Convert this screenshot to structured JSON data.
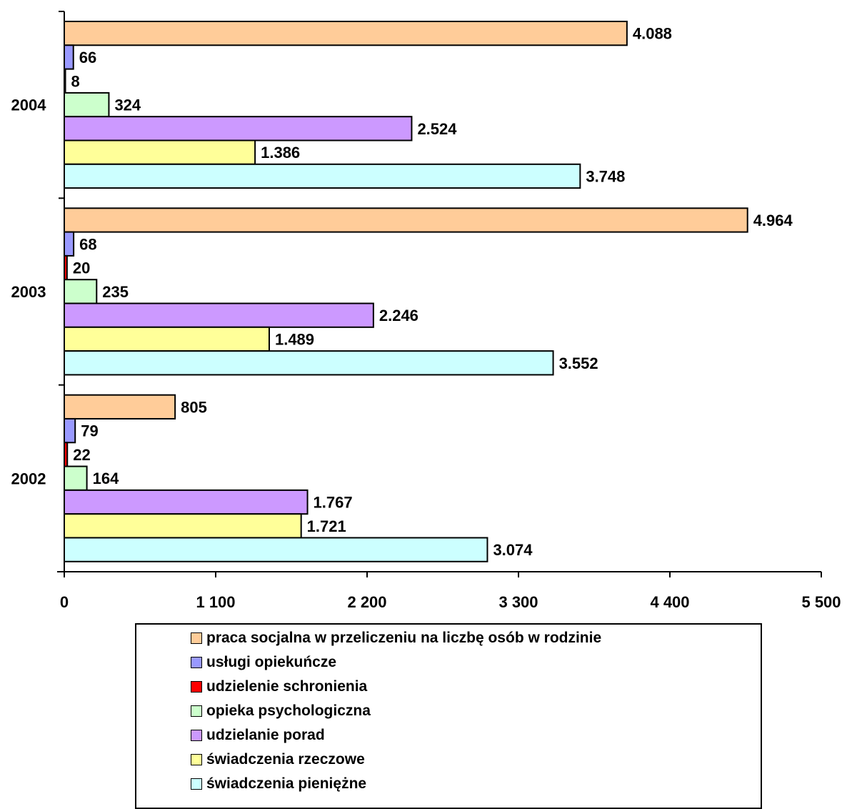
{
  "chart_data": {
    "type": "bar",
    "orientation": "horizontal",
    "categories": [
      "2004",
      "2003",
      "2002"
    ],
    "xlim": [
      0,
      5500
    ],
    "x_ticks": [
      0,
      1100,
      2200,
      3300,
      4400,
      5500
    ],
    "x_tick_labels": [
      "0",
      "1 100",
      "2 200",
      "3 300",
      "4 400",
      "5 500"
    ],
    "legend_position": "bottom",
    "series": [
      {
        "name": "praca socjalna w przeliczeniu na liczbę osób w rodzinie",
        "color": "#FFCC99",
        "values": [
          4088,
          4964,
          805
        ],
        "labels": [
          "4.088",
          "4.964",
          "805"
        ]
      },
      {
        "name": "usługi opiekuńcze",
        "color": "#9999FF",
        "values": [
          66,
          68,
          79
        ],
        "labels": [
          "66",
          "68",
          "79"
        ]
      },
      {
        "name": "udzielenie schronienia",
        "color": "#FF0000",
        "values": [
          8,
          20,
          22
        ],
        "labels": [
          "8",
          "20",
          "22"
        ]
      },
      {
        "name": "opieka psychologiczna",
        "color": "#CCFFCC",
        "values": [
          324,
          235,
          164
        ],
        "labels": [
          "324",
          "235",
          "164"
        ]
      },
      {
        "name": "udzielanie porad",
        "color": "#CC99FF",
        "values": [
          2524,
          2246,
          1767
        ],
        "labels": [
          "2.524",
          "2.246",
          "1.767"
        ]
      },
      {
        "name": "świadczenia rzeczowe",
        "color": "#FFFF99",
        "values": [
          1386,
          1489,
          1721
        ],
        "labels": [
          "1.386",
          "1.489",
          "1.721"
        ]
      },
      {
        "name": "świadczenia pieniężne",
        "color": "#CCFFFF",
        "values": [
          3748,
          3552,
          3074
        ],
        "labels": [
          "3.748",
          "3.552",
          "3.074"
        ]
      }
    ]
  }
}
